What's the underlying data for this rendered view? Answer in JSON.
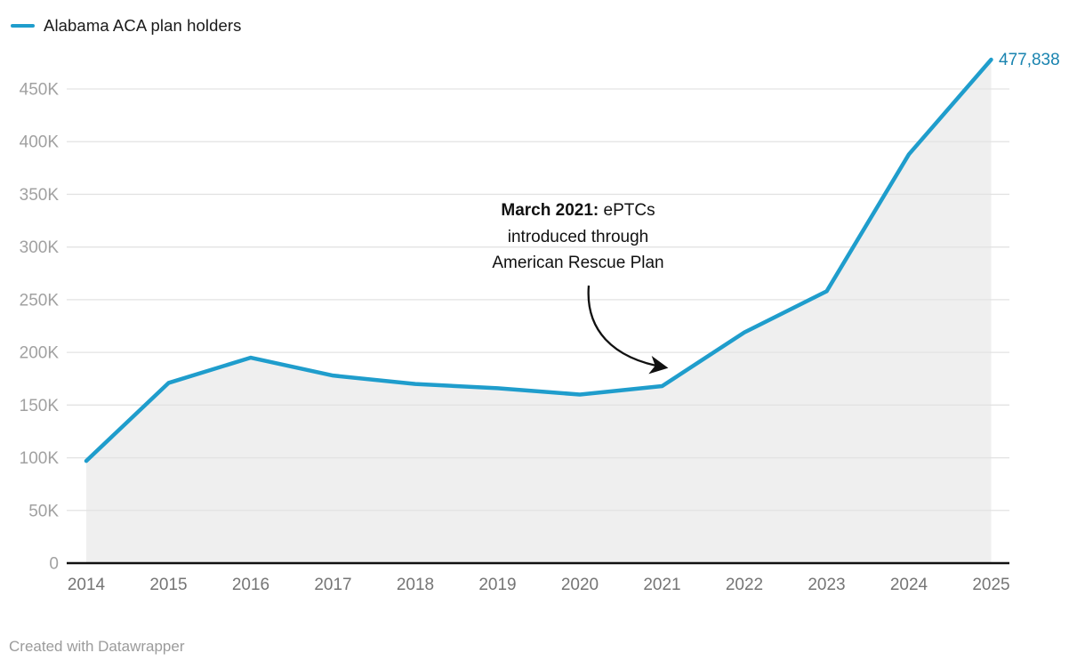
{
  "legend": {
    "label": "Alabama ACA plan holders"
  },
  "annotation": {
    "bold_prefix": "March 2021:",
    "line1_rest": " ePTCs",
    "line2": "introduced through",
    "line3": "American Rescue Plan"
  },
  "end_label": "477,838",
  "footer": {
    "text": "Created with Datawrapper"
  },
  "colors": {
    "line": "#1f9dcc",
    "end_label_blue": "#1a84b0",
    "area_fill": "#efefef",
    "gridline": "#e3e3e3",
    "axis_line": "#111111",
    "ytick_gray": "#a1a1a1",
    "xtick_gray": "#757575",
    "annotation_black": "#111111",
    "footer_gray": "#9b9b9b"
  },
  "chart_data": {
    "type": "area",
    "title": "",
    "series_name": "Alabama ACA plan holders",
    "categories": [
      "2014",
      "2015",
      "2016",
      "2017",
      "2018",
      "2019",
      "2020",
      "2021",
      "2022",
      "2023",
      "2024",
      "2025"
    ],
    "values": [
      97000,
      171000,
      195000,
      178000,
      170000,
      166000,
      160000,
      168000,
      219000,
      258000,
      388000,
      477838
    ],
    "xlabel": "",
    "ylabel": "",
    "ylim": [
      0,
      480000
    ],
    "yticks": [
      {
        "value": 0,
        "label": "0"
      },
      {
        "value": 50000,
        "label": "50K"
      },
      {
        "value": 100000,
        "label": "100K"
      },
      {
        "value": 150000,
        "label": "150K"
      },
      {
        "value": 200000,
        "label": "200K"
      },
      {
        "value": 250000,
        "label": "250K"
      },
      {
        "value": 300000,
        "label": "300K"
      },
      {
        "value": 350000,
        "label": "350K"
      },
      {
        "value": 400000,
        "label": "400K"
      },
      {
        "value": 450000,
        "label": "450K"
      }
    ],
    "grid": true,
    "legend_position": "top-left",
    "last_point_label": "477,838",
    "annotation": "March 2021: ePTCs introduced through American Rescue Plan"
  }
}
